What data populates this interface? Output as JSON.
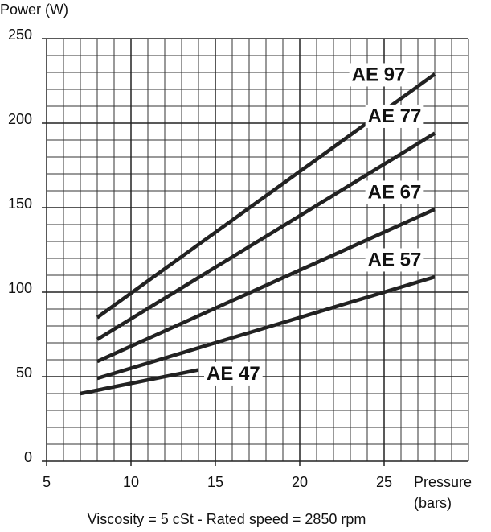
{
  "chart_data": {
    "type": "line",
    "y_label": "Power (W)",
    "x_label": [
      "Pressure",
      "(bars)"
    ],
    "footer": "Viscosity = 5 cSt  -  Rated speed = 2850 rpm",
    "xlim": [
      5,
      30
    ],
    "xticks": [
      5,
      10,
      15,
      20,
      25
    ],
    "ylim": [
      0,
      250
    ],
    "yticks": [
      0,
      50,
      100,
      150,
      200,
      250
    ],
    "grid": true,
    "series": [
      {
        "name": "AE 97",
        "color": "#222222",
        "x": [
          8,
          28
        ],
        "values": [
          85,
          229
        ]
      },
      {
        "name": "AE 77",
        "color": "#222222",
        "x": [
          8,
          28
        ],
        "values": [
          72,
          194
        ]
      },
      {
        "name": "AE 67",
        "color": "#222222",
        "x": [
          8,
          28
        ],
        "values": [
          59,
          149
        ]
      },
      {
        "name": "AE 57",
        "color": "#222222",
        "x": [
          8,
          28
        ],
        "values": [
          49,
          109
        ]
      },
      {
        "name": "AE 47",
        "color": "#222222",
        "x": [
          7,
          14
        ],
        "values": [
          40,
          54
        ]
      }
    ]
  }
}
